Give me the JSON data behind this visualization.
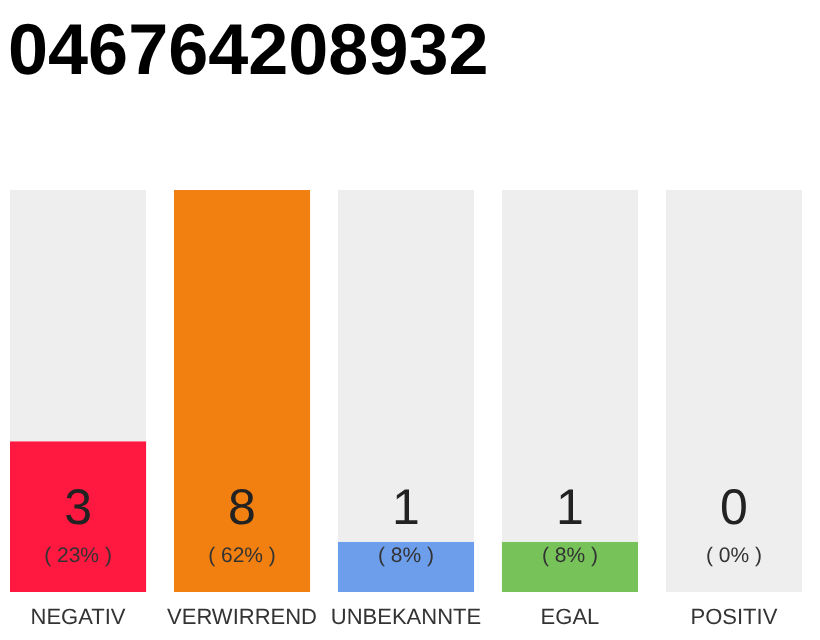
{
  "chart_data": {
    "type": "bar",
    "title": "046764208932",
    "categories": [
      "NEGATIV",
      "VERWIRREND",
      "UNBEKANNTE",
      "EGAL",
      "POSITIV"
    ],
    "stacked": true,
    "series": [
      {
        "colors": [
          "#ff1940",
          "#f28010",
          "#6d9eeb",
          "#77c35a",
          "#cccccc"
        ],
        "values": [
          3,
          8,
          1,
          1,
          0
        ],
        "value_labels": [
          "3",
          "8",
          "1",
          "1",
          null
        ]
      },
      {
        "color": "#eeeeee",
        "values": [
          5,
          0,
          7,
          7,
          8
        ]
      }
    ],
    "ylim": [
      0,
      8
    ],
    "tick_labels": "x",
    "annotations": [
      "( 23% )",
      "( 62% )",
      "( 8% )",
      "( 8% )",
      "( 0% )",
      "0"
    ]
  }
}
